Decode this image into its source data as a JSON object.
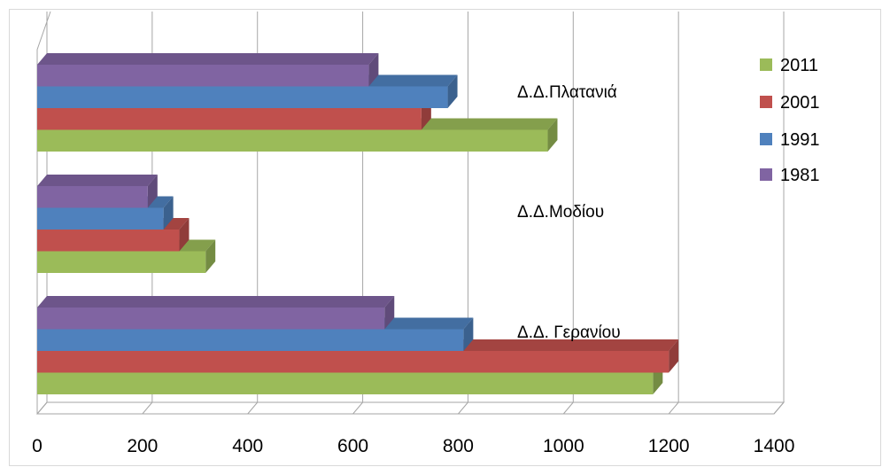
{
  "chart_data": {
    "type": "bar",
    "orientation": "horizontal",
    "three_d": true,
    "categories": [
      "Δ.Δ. Γερανίου",
      "Δ.Δ.Μοδίου",
      "Δ.Δ.Πλατανιά"
    ],
    "series": [
      {
        "name": "2011",
        "color": "#9bbb59",
        "values": [
          1170,
          320,
          970
        ]
      },
      {
        "name": "2001",
        "color": "#c0504d",
        "values": [
          1200,
          270,
          730
        ]
      },
      {
        "name": "1991",
        "color": "#4f81bd",
        "values": [
          810,
          240,
          780
        ]
      },
      {
        "name": "1981",
        "color": "#8064a2",
        "values": [
          660,
          210,
          630
        ]
      }
    ],
    "x_ticks": [
      "0",
      "200",
      "400",
      "600",
      "800",
      "1000",
      "1200",
      "1400"
    ],
    "xlim": [
      0,
      1400
    ],
    "grid": true,
    "legend_position": "right"
  }
}
